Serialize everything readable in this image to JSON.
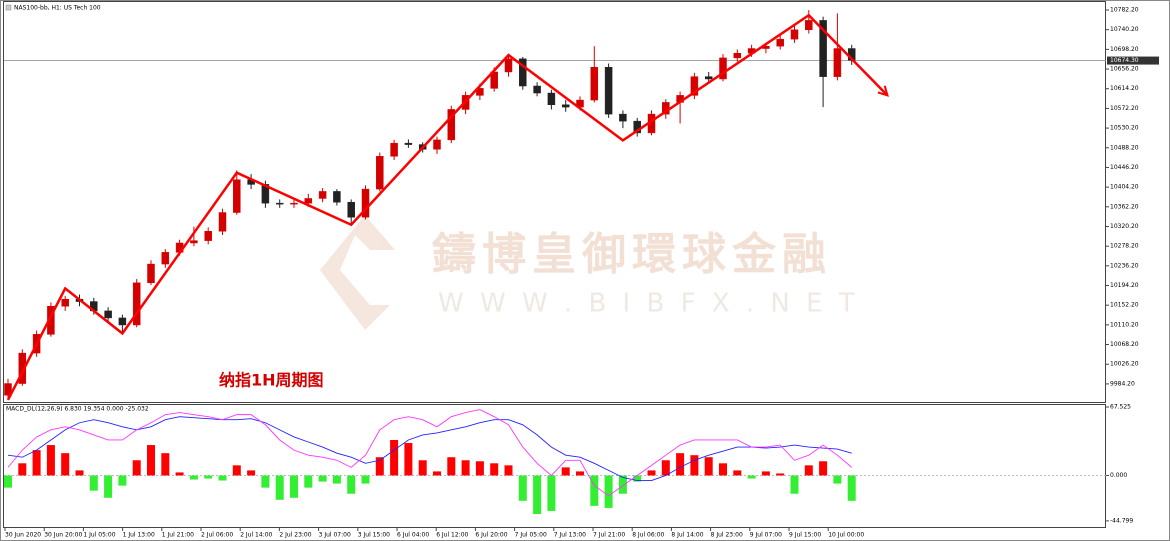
{
  "header": "NAS100-bb, H1: US Tech 100",
  "annotation": "纳指1H周期图",
  "watermark": {
    "name": "鑄博皇御環球金融",
    "url": "W W W . B I B F X . N E T"
  },
  "time_labels": [
    "30 Jun 2020",
    "30 Jun 20:00",
    "1 Jul 05:00",
    "1 Jul 13:00",
    "1 Jul 21:00",
    "2 Jul 06:00",
    "2 Jul 14:00",
    "2 Jul 23:00",
    "3 Jul 07:00",
    "3 Jul 15:00",
    "6 Jul 04:00",
    "6 Jul 12:00",
    "6 Jul 20:00",
    "7 Jul 05:00",
    "7 Jul 13:00",
    "7 Jul 21:00",
    "8 Jul 06:00",
    "8 Jul 14:00",
    "8 Jul 23:00",
    "9 Jul 07:00",
    "9 Jul 15:00",
    "10 Jul 00:00"
  ],
  "chart_data": [
    {
      "type": "candlestick",
      "open": [
        9960,
        9985,
        10050,
        10090,
        10150,
        10165,
        10160,
        10140,
        10125,
        10110,
        10200,
        10240,
        10265,
        10285,
        10290,
        10310,
        10350,
        10420,
        10410,
        10370,
        10368,
        10370,
        10380,
        10395,
        10372,
        10340,
        10400,
        10470,
        10498,
        10495,
        10485,
        10505,
        10570,
        10600,
        10615,
        10650,
        10678,
        10620,
        10605,
        10580,
        10575,
        10590,
        10660,
        10560,
        10545,
        10520,
        10560,
        10585,
        10600,
        10640,
        10635,
        10680,
        10690,
        10700,
        10705,
        10720,
        10740,
        10760,
        10640,
        10700
      ],
      "high": [
        9995,
        10058,
        10098,
        10158,
        10172,
        10175,
        10168,
        10148,
        10132,
        10208,
        10248,
        10272,
        10292,
        10320,
        10318,
        10358,
        10440,
        10432,
        10418,
        10378,
        10378,
        10390,
        10402,
        10400,
        10378,
        10408,
        10478,
        10505,
        10506,
        10500,
        10512,
        10578,
        10608,
        10625,
        10660,
        10686,
        10682,
        10628,
        10612,
        10590,
        10598,
        10705,
        10668,
        10568,
        10552,
        10568,
        10592,
        10608,
        10648,
        10650,
        10688,
        10698,
        10708,
        10712,
        10728,
        10748,
        10782,
        10768,
        10775,
        10708
      ],
      "low": [
        9950,
        9980,
        10042,
        10085,
        10140,
        10150,
        10132,
        10118,
        10095,
        10105,
        10195,
        10232,
        10258,
        10278,
        10282,
        10302,
        10345,
        10400,
        10360,
        10360,
        10360,
        10362,
        10372,
        10365,
        10325,
        10335,
        10395,
        10462,
        10488,
        10478,
        10475,
        10498,
        10560,
        10590,
        10608,
        10640,
        10612,
        10598,
        10570,
        10565,
        10568,
        10585,
        10552,
        10530,
        10512,
        10515,
        10550,
        10540,
        10592,
        10625,
        10630,
        10672,
        10682,
        10690,
        10698,
        10712,
        10732,
        10575,
        10632,
        10665
      ],
      "close": [
        9985,
        10050,
        10090,
        10150,
        10165,
        10160,
        10140,
        10125,
        10110,
        10200,
        10240,
        10265,
        10285,
        10290,
        10310,
        10350,
        10420,
        10410,
        10370,
        10368,
        10370,
        10380,
        10395,
        10372,
        10340,
        10400,
        10470,
        10498,
        10495,
        10485,
        10505,
        10570,
        10600,
        10615,
        10650,
        10678,
        10620,
        10605,
        10580,
        10575,
        10590,
        10660,
        10560,
        10545,
        10520,
        10560,
        10585,
        10600,
        10640,
        10635,
        10680,
        10690,
        10700,
        10705,
        10720,
        10740,
        10760,
        10640,
        10700,
        10675
      ],
      "up_color": "#d40000",
      "down_color": "#222222",
      "ylim": [
        9945.6,
        10799.3
      ],
      "yticks": [
        {
          "value": 10782.2,
          "label": "10782.20"
        },
        {
          "value": 10740.2,
          "label": "10740.20"
        },
        {
          "value": 10698.2,
          "label": "10698.20"
        },
        {
          "value": 10656.2,
          "label": "10656.20"
        },
        {
          "value": 10614.2,
          "label": "10614.20"
        },
        {
          "value": 10572.2,
          "label": "10572.20"
        },
        {
          "value": 10530.2,
          "label": "10530.20"
        },
        {
          "value": 10488.2,
          "label": "10488.20"
        },
        {
          "value": 10446.2,
          "label": "10446.20"
        },
        {
          "value": 10404.2,
          "label": "10404.20"
        },
        {
          "value": 10362.2,
          "label": "10362.20"
        },
        {
          "value": 10320.2,
          "label": "10320.20"
        },
        {
          "value": 10278.2,
          "label": "10278.20"
        },
        {
          "value": 10236.2,
          "label": "10236.20"
        },
        {
          "value": 10194.2,
          "label": "10194.20"
        },
        {
          "value": 10152.2,
          "label": "10152.20"
        },
        {
          "value": 10110.2,
          "label": "10110.20"
        },
        {
          "value": 10068.2,
          "label": "10068.20"
        },
        {
          "value": 10026.2,
          "label": "10026.20"
        },
        {
          "value": 9984.2,
          "label": "9984.20"
        }
      ],
      "current_price": {
        "value": 10674.3,
        "label": "10674.30"
      },
      "zigzag": {
        "color": "#ff0000",
        "x": [
          0,
          4,
          8,
          16,
          24,
          35,
          43,
          56,
          61.5
        ],
        "y": [
          9950,
          10188,
          10092,
          10435,
          10324,
          10686,
          10504,
          10771,
          10600
        ]
      }
    },
    {
      "type": "macd",
      "title": "MACD_DL(12,26,9) 6.830 19.354 0.000 -25.032",
      "histogram": {
        "up_color": "#ff0000",
        "down_color": "#33ee33",
        "values": [
          -12,
          12,
          25,
          30,
          22,
          5,
          -15,
          -22,
          -10,
          15,
          30,
          22,
          3,
          -4,
          -3,
          -5,
          10,
          5,
          -12,
          -24,
          -22,
          -12,
          -6,
          -8,
          -18,
          -8,
          18,
          35,
          32,
          15,
          4,
          18,
          15,
          14,
          12,
          10,
          -25,
          -38,
          -35,
          8,
          4,
          -30,
          -32,
          -18,
          -6,
          5,
          15,
          22,
          20,
          18,
          12,
          5,
          -3,
          4,
          2,
          -18,
          10,
          14,
          -8,
          -25
        ]
      },
      "series": [
        {
          "color": "#2222ff",
          "values": [
            20,
            18,
            25,
            35,
            45,
            52,
            55,
            52,
            48,
            45,
            48,
            55,
            58,
            57,
            56,
            55,
            55,
            56,
            52,
            45,
            38,
            33,
            28,
            22,
            18,
            12,
            15,
            25,
            35,
            40,
            42,
            45,
            48,
            52,
            55,
            55,
            50,
            40,
            28,
            20,
            18,
            12,
            5,
            -2,
            -5,
            -5,
            0,
            8,
            15,
            20,
            24,
            28,
            28,
            27,
            28,
            30,
            28,
            27,
            26,
            22
          ]
        },
        {
          "color": "#ff33ff",
          "values": [
            8,
            25,
            38,
            45,
            48,
            45,
            40,
            35,
            35,
            45,
            52,
            60,
            62,
            60,
            58,
            55,
            60,
            60,
            50,
            35,
            25,
            20,
            18,
            15,
            8,
            20,
            45,
            55,
            58,
            55,
            48,
            58,
            62,
            65,
            58,
            50,
            28,
            12,
            0,
            15,
            15,
            -10,
            -20,
            -10,
            0,
            10,
            20,
            30,
            35,
            35,
            35,
            35,
            28,
            28,
            30,
            15,
            20,
            30,
            20,
            8
          ]
        }
      ],
      "ylim": [
        -51.8,
        69.5
      ],
      "yticks": [
        {
          "value": 67.525,
          "label": "67.525"
        },
        {
          "value": 0,
          "label": "0.000"
        },
        {
          "value": -44.799,
          "label": "-44.799"
        }
      ]
    }
  ]
}
